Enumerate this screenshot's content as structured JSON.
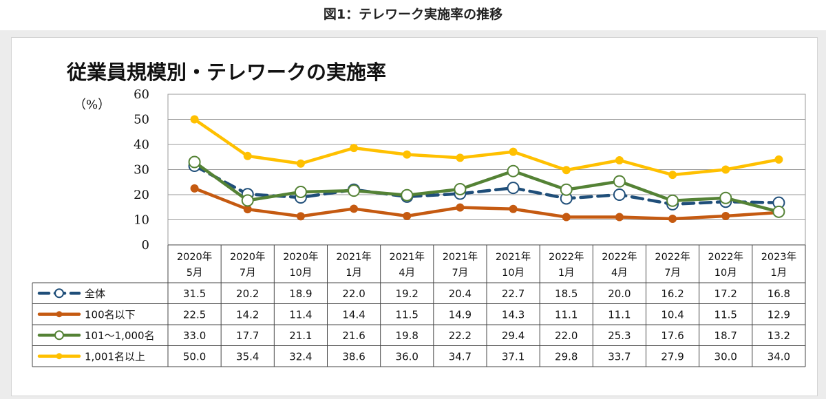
{
  "figure_caption": "図1：テレワーク実施率の推移",
  "chart_data": {
    "type": "line",
    "title": "従業員規模別・テレワークの実施率",
    "ylabel": "（%）",
    "xlabel": "",
    "ylim": [
      0,
      60
    ],
    "yticks": [
      0,
      10,
      20,
      30,
      40,
      50,
      60
    ],
    "grid": true,
    "legend_placement": "data-table-below",
    "categories": [
      [
        "2020年",
        "5月"
      ],
      [
        "2020年",
        "7月"
      ],
      [
        "2020年",
        "10月"
      ],
      [
        "2021年",
        "1月"
      ],
      [
        "2021年",
        "4月"
      ],
      [
        "2021年",
        "7月"
      ],
      [
        "2021年",
        "10月"
      ],
      [
        "2022年",
        "1月"
      ],
      [
        "2022年",
        "4月"
      ],
      [
        "2022年",
        "7月"
      ],
      [
        "2022年",
        "10月"
      ],
      [
        "2023年",
        "1月"
      ]
    ],
    "series": [
      {
        "name": "全体",
        "color": "#1f4e79",
        "style": "dashed",
        "marker": "open-circle",
        "values": [
          31.5,
          20.2,
          18.9,
          22.0,
          19.2,
          20.4,
          22.7,
          18.5,
          20.0,
          16.2,
          17.2,
          16.8
        ],
        "labels": [
          "31.5",
          "20.2",
          "18.9",
          "22.0",
          "19.2",
          "20.4",
          "22.7",
          "18.5",
          "20.0",
          "16.2",
          "17.2",
          "16.8"
        ]
      },
      {
        "name": "100名以下",
        "color": "#c55a11",
        "style": "solid",
        "marker": "filled-dot",
        "values": [
          22.5,
          14.2,
          11.4,
          14.4,
          11.5,
          14.9,
          14.3,
          11.1,
          11.1,
          10.4,
          11.5,
          12.9
        ],
        "labels": [
          "22.5",
          "14.2",
          "11.4",
          "14.4",
          "11.5",
          "14.9",
          "14.3",
          "11.1",
          "11.1",
          "10.4",
          "11.5",
          "12.9"
        ]
      },
      {
        "name": "101～1,000名",
        "color": "#548235",
        "style": "solid",
        "marker": "open-circle",
        "values": [
          33.0,
          17.7,
          21.1,
          21.6,
          19.8,
          22.2,
          29.4,
          22.0,
          25.3,
          17.6,
          18.7,
          13.2
        ],
        "labels": [
          "33.0",
          "17.7",
          "21.1",
          "21.6",
          "19.8",
          "22.2",
          "29.4",
          "22.0",
          "25.3",
          "17.6",
          "18.7",
          "13.2"
        ]
      },
      {
        "name": "1,001名以上",
        "color": "#ffc000",
        "style": "solid",
        "marker": "filled-dot",
        "values": [
          50.0,
          35.4,
          32.4,
          38.6,
          36.0,
          34.7,
          37.1,
          29.8,
          33.7,
          27.9,
          30.0,
          34.0
        ],
        "labels": [
          "50.0",
          "35.4",
          "32.4",
          "38.6",
          "36.0",
          "34.7",
          "37.1",
          "29.8",
          "33.7",
          "27.9",
          "30.0",
          "34.0"
        ]
      }
    ]
  }
}
